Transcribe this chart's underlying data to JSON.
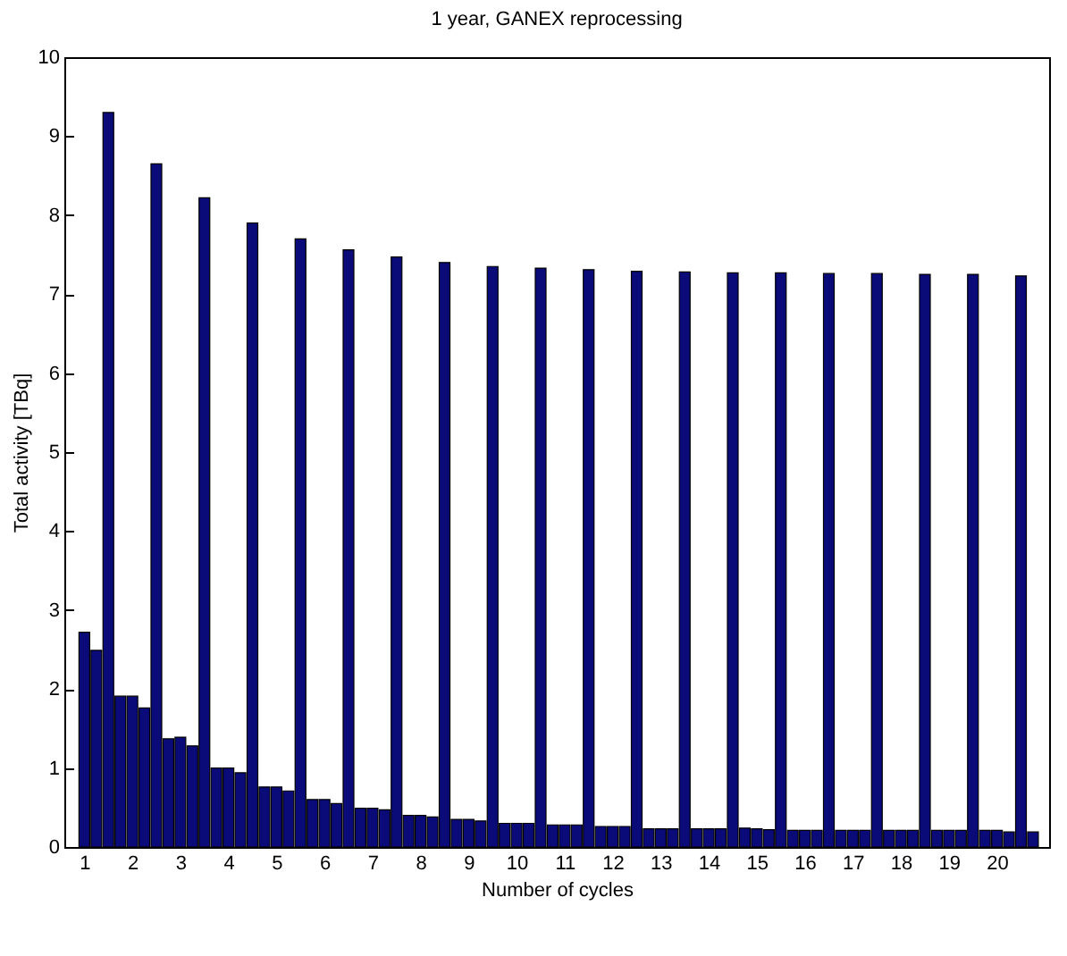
{
  "chart_data": {
    "type": "bar",
    "title": "1 year, GANEX reprocessing",
    "xlabel": "Number of cycles",
    "ylabel": "Total activity [TBq]",
    "x": [
      1,
      1.25,
      1.5,
      1.75,
      2,
      2.25,
      2.5,
      2.75,
      3,
      3.25,
      3.5,
      3.75,
      4,
      4.25,
      4.5,
      4.75,
      5,
      5.25,
      5.5,
      5.75,
      6,
      6.25,
      6.5,
      6.75,
      7,
      7.25,
      7.5,
      7.75,
      8,
      8.25,
      8.5,
      8.75,
      9,
      9.25,
      9.5,
      9.75,
      10,
      10.25,
      10.5,
      10.75,
      11,
      11.25,
      11.5,
      11.75,
      12,
      12.25,
      12.5,
      12.75,
      13,
      13.25,
      13.5,
      13.75,
      14,
      14.25,
      14.5,
      14.75,
      15,
      15.25,
      15.5,
      15.75,
      16,
      16.25,
      16.5,
      16.75,
      17,
      17.25,
      17.5,
      17.75,
      18,
      18.25,
      18.5,
      18.75,
      19,
      19.25,
      19.5,
      19.75,
      20,
      20.25,
      20.5,
      20.75
    ],
    "series": [
      {
        "color": "#0a0a78",
        "values": [
          2.72,
          2.49,
          9.3,
          1.91,
          1.91,
          1.76,
          8.65,
          1.37,
          1.39,
          1.28,
          8.22,
          1.0,
          1.0,
          0.94,
          7.9,
          0.76,
          0.76,
          0.71,
          7.7,
          0.6,
          0.6,
          0.55,
          7.56,
          0.49,
          0.49,
          0.47,
          7.47,
          0.4,
          0.4,
          0.38,
          7.4,
          0.35,
          0.35,
          0.33,
          7.35,
          0.3,
          0.3,
          0.3,
          7.33,
          0.28,
          0.28,
          0.28,
          7.31,
          0.26,
          0.26,
          0.26,
          7.29,
          0.23,
          0.23,
          0.23,
          7.28,
          0.23,
          0.23,
          0.23,
          7.27,
          0.24,
          0.23,
          0.22,
          7.27,
          0.21,
          0.21,
          0.21,
          7.26,
          0.21,
          0.21,
          0.21,
          7.26,
          0.21,
          0.21,
          0.21,
          7.25,
          0.21,
          0.21,
          0.21,
          7.25,
          0.21,
          0.21,
          0.19,
          7.23,
          0.19
        ]
      }
    ],
    "xlim": [
      0.77,
      20.9
    ],
    "xticks": [
      1,
      2,
      3,
      4,
      5,
      6,
      7,
      8,
      9,
      10,
      11,
      12,
      13,
      14,
      15,
      16,
      17,
      18,
      19,
      20
    ],
    "ylim": [
      0,
      10
    ],
    "yticks": [
      0,
      1,
      2,
      3,
      4,
      5,
      6,
      7,
      8,
      9,
      10
    ]
  }
}
